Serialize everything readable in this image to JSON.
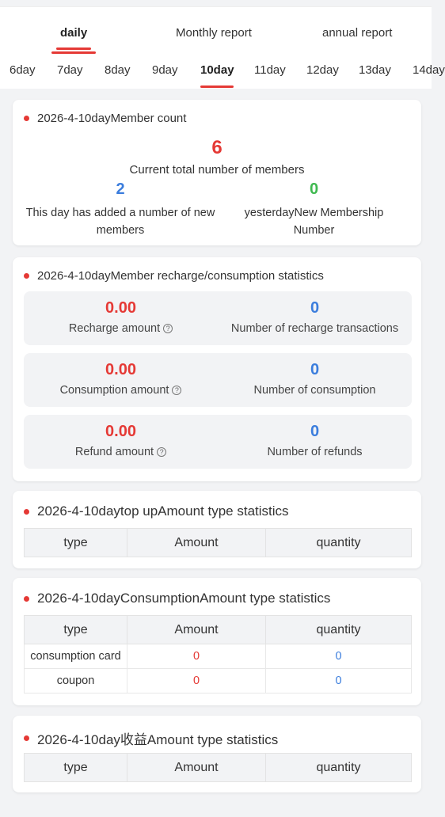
{
  "tabs": [
    {
      "label": "daily",
      "active": true
    },
    {
      "label": "Monthly report",
      "active": false
    },
    {
      "label": "annual report",
      "active": false
    }
  ],
  "days": [
    {
      "label": "6day",
      "active": false
    },
    {
      "label": "7day",
      "active": false
    },
    {
      "label": "8day",
      "active": false
    },
    {
      "label": "9day",
      "active": false
    },
    {
      "label": "10day",
      "active": true
    },
    {
      "label": "11day",
      "active": false
    },
    {
      "label": "12day",
      "active": false
    },
    {
      "label": "13day",
      "active": false
    },
    {
      "label": "14day",
      "active": false
    }
  ],
  "member_card": {
    "title": "2026-4-10dayMember count",
    "total_value": "6",
    "total_label": "Current total number of members",
    "added_value": "2",
    "added_label": "This day has added a number of new members",
    "yesterday_value": "0",
    "yesterday_label": "yesterdayNew Membership Number"
  },
  "recharge_card": {
    "title": "2026-4-10dayMember recharge/consumption statistics",
    "rows": [
      {
        "amount": "0.00",
        "amount_label": "Recharge amount",
        "count": "0",
        "count_label": "Number of recharge transactions"
      },
      {
        "amount": "0.00",
        "amount_label": "Consumption amount",
        "count": "0",
        "count_label": "Number of consumption"
      },
      {
        "amount": "0.00",
        "amount_label": "Refund amount",
        "count": "0",
        "count_label": "Number of refunds"
      }
    ],
    "help_glyph": "?"
  },
  "topup_card": {
    "title": "2026-4-10daytop upAmount type statistics",
    "headers": [
      "type",
      "Amount",
      "quantity"
    ],
    "rows": []
  },
  "consumption_card": {
    "title": "2026-4-10dayConsumptionAmount type statistics",
    "headers": [
      "type",
      "Amount",
      "quantity"
    ],
    "rows": [
      {
        "type": "consumption card",
        "amount": "0",
        "quantity": "0"
      },
      {
        "type": "coupon",
        "amount": "0",
        "quantity": "0"
      }
    ]
  },
  "income_card": {
    "title": "2026-4-10day收益Amount type statistics",
    "headers": [
      "type",
      "Amount",
      "quantity"
    ],
    "rows": []
  },
  "colors": {
    "accent_red": "#e53935",
    "value_blue": "#3b7ddd",
    "value_green": "#3fb950"
  }
}
